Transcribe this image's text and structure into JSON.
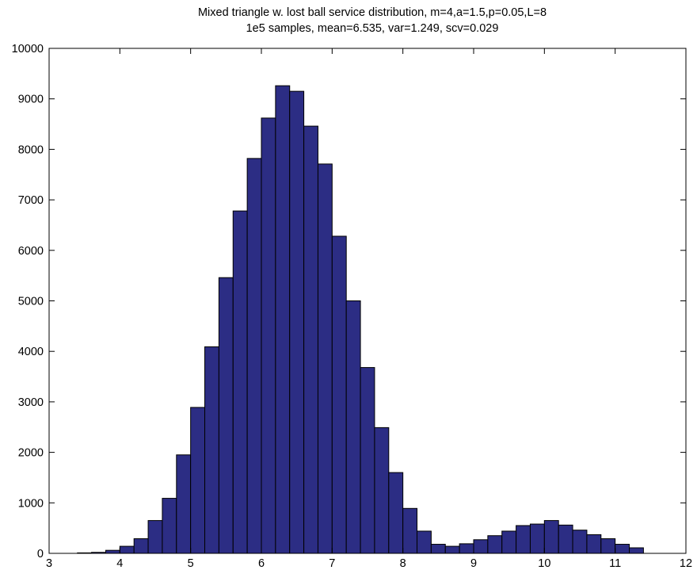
{
  "chart_data": {
    "type": "bar",
    "title": "Mixed triangle w. lost ball service distribution, m=4,a=1.5,p=0.05,L=8",
    "subtitle": "1e5 samples, mean=6.535, var=1.249, scv=0.029",
    "xlim": [
      3,
      12
    ],
    "ylim": [
      0,
      10000
    ],
    "xticks": [
      "3",
      "4",
      "5",
      "6",
      "7",
      "8",
      "9",
      "10",
      "11",
      "12"
    ],
    "yticks": [
      "0",
      "1000",
      "2000",
      "3000",
      "4000",
      "5000",
      "6000",
      "7000",
      "8000",
      "9000",
      "10000"
    ],
    "bin_width": 0.2,
    "bins": [
      {
        "x": 3.4,
        "value": 10
      },
      {
        "x": 3.6,
        "value": 20
      },
      {
        "x": 3.8,
        "value": 60
      },
      {
        "x": 4.0,
        "value": 140
      },
      {
        "x": 4.2,
        "value": 290
      },
      {
        "x": 4.4,
        "value": 650
      },
      {
        "x": 4.6,
        "value": 1090
      },
      {
        "x": 4.8,
        "value": 1950
      },
      {
        "x": 5.0,
        "value": 2890
      },
      {
        "x": 5.2,
        "value": 4090
      },
      {
        "x": 5.4,
        "value": 5460
      },
      {
        "x": 5.6,
        "value": 6780
      },
      {
        "x": 5.8,
        "value": 7820
      },
      {
        "x": 6.0,
        "value": 8620
      },
      {
        "x": 6.2,
        "value": 9260
      },
      {
        "x": 6.4,
        "value": 9150
      },
      {
        "x": 6.6,
        "value": 8460
      },
      {
        "x": 6.8,
        "value": 7710
      },
      {
        "x": 7.0,
        "value": 6280
      },
      {
        "x": 7.2,
        "value": 5000
      },
      {
        "x": 7.4,
        "value": 3680
      },
      {
        "x": 7.6,
        "value": 2490
      },
      {
        "x": 7.8,
        "value": 1600
      },
      {
        "x": 8.0,
        "value": 890
      },
      {
        "x": 8.2,
        "value": 440
      },
      {
        "x": 8.4,
        "value": 180
      },
      {
        "x": 8.6,
        "value": 140
      },
      {
        "x": 8.8,
        "value": 190
      },
      {
        "x": 9.0,
        "value": 270
      },
      {
        "x": 9.2,
        "value": 350
      },
      {
        "x": 9.4,
        "value": 440
      },
      {
        "x": 9.6,
        "value": 550
      },
      {
        "x": 9.8,
        "value": 580
      },
      {
        "x": 10.0,
        "value": 650
      },
      {
        "x": 10.2,
        "value": 560
      },
      {
        "x": 10.4,
        "value": 460
      },
      {
        "x": 10.6,
        "value": 370
      },
      {
        "x": 10.8,
        "value": 290
      },
      {
        "x": 11.0,
        "value": 180
      },
      {
        "x": 11.2,
        "value": 110
      }
    ],
    "grid": false,
    "colors": {
      "bar_fill": "#2c2d84",
      "bar_edge": "#000000",
      "axes": "#000000",
      "background": "#ffffff"
    }
  }
}
